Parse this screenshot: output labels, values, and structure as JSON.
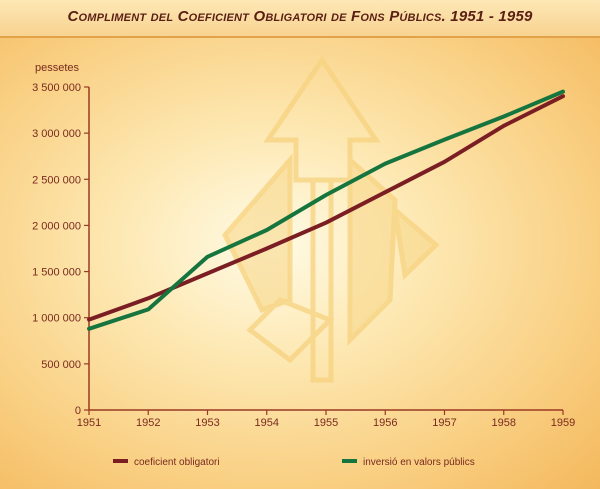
{
  "chart_data": {
    "type": "line",
    "title": "Compliment del Coeficient Obligatori de Fons Públics. 1951 - 1959",
    "ylabel": "pessetes",
    "xlabel": "",
    "x": [
      "1951",
      "1952",
      "1953",
      "1954",
      "1955",
      "1956",
      "1957",
      "1958",
      "1959"
    ],
    "ylim": [
      0,
      3500000
    ],
    "yticks": [
      0,
      500000,
      1000000,
      1500000,
      2000000,
      2500000,
      3000000,
      3500000
    ],
    "ytick_labels": [
      "0",
      "500 000",
      "1 000 000",
      "1 500 000",
      "2 000 000",
      "2 500 000",
      "3 000 000",
      "3 500 000"
    ],
    "grid": false,
    "legend_position": "bottom",
    "series": [
      {
        "name": "coeficient obligatori",
        "color": "#7a1e24",
        "values": [
          980000,
          1210000,
          1480000,
          1750000,
          2030000,
          2360000,
          2690000,
          3080000,
          3400000
        ]
      },
      {
        "name": "inversió en valors públics",
        "color": "#16753f",
        "values": [
          880000,
          1090000,
          1660000,
          1950000,
          2330000,
          2670000,
          2930000,
          3180000,
          3450000
        ]
      }
    ]
  }
}
